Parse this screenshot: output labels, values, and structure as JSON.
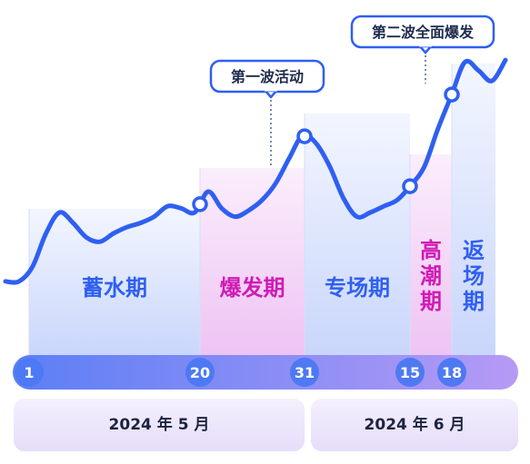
{
  "colors": {
    "line": "#2f5ff2",
    "blue_text": "#2f5ff2",
    "magenta_text": "#d01bb6",
    "blue_band_top": "#f3f6ff",
    "blue_band_bottom": "#c9d6fb",
    "pink_band_top": "#fbeefc",
    "pink_band_bottom": "#eec3f3",
    "timeline_left": "#5b7ff5",
    "timeline_right": "#b69af5",
    "day_circle": "#4e79f4",
    "month_bar": "#e5ddfa",
    "callout_border": "#2f5ff2"
  },
  "chart_data": {
    "type": "line",
    "title": "",
    "xlabel": "",
    "ylabel": "",
    "phases": [
      {
        "label": "蓄水期",
        "start_tick": 0,
        "end_tick": 1,
        "style": "blue",
        "orientation": "horizontal"
      },
      {
        "label": "爆发期",
        "start_tick": 1,
        "end_tick": 2,
        "style": "pink",
        "orientation": "horizontal"
      },
      {
        "label": "专场期",
        "start_tick": 2,
        "end_tick": 3,
        "style": "blue",
        "orientation": "horizontal"
      },
      {
        "label": "高潮期",
        "start_tick": 3,
        "end_tick": 4,
        "style": "pink",
        "orientation": "vertical"
      },
      {
        "label": "返场期",
        "start_tick": 4,
        "end_tick": 5,
        "style": "blue",
        "orientation": "vertical"
      }
    ],
    "day_ticks": [
      "1",
      "20",
      "31",
      "15",
      "18"
    ],
    "months": [
      "2024 年 5 月",
      "2024 年 6 月"
    ],
    "callouts": [
      {
        "text": "第一波活动",
        "at_tick": 2
      },
      {
        "text": "第二波全面爆发",
        "at_tick": 4
      }
    ],
    "series_y_relative": [
      0.27,
      0.27,
      0.34,
      0.5,
      0.6,
      0.55,
      0.48,
      0.46,
      0.5,
      0.53,
      0.55,
      0.58,
      0.63,
      0.62,
      0.6,
      0.7,
      0.62,
      0.58,
      0.61,
      0.66,
      0.74,
      0.86,
      0.97,
      0.93,
      0.82,
      0.67,
      0.58,
      0.6,
      0.63,
      0.66,
      0.73,
      0.82,
      1.0,
      1.16,
      1.32,
      1.28,
      1.23,
      1.33
    ]
  }
}
